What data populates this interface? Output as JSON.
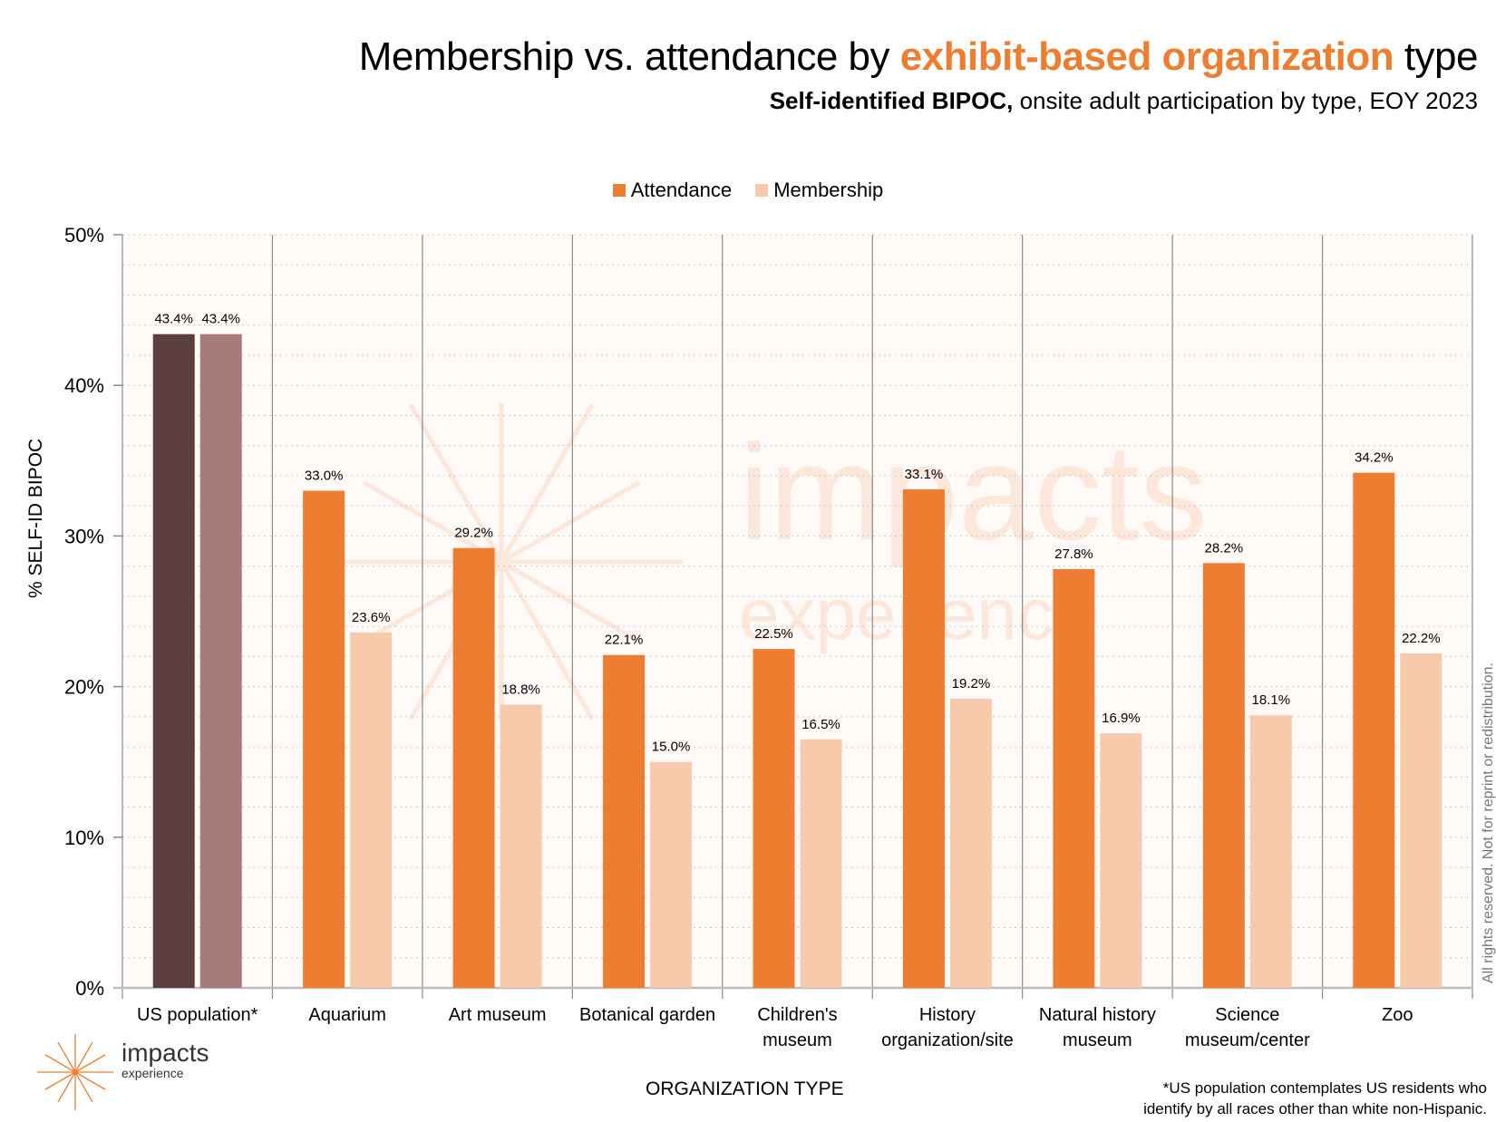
{
  "title": {
    "prefix": "Membership vs. attendance by ",
    "highlight": "exhibit-based organization",
    "suffix": " type"
  },
  "subtitle": {
    "bold": "Self-identified BIPOC,",
    "rest": " onsite adult participation by type, EOY 2023"
  },
  "colors": {
    "attendance": "#ed7d31",
    "membership": "#f7caac",
    "us_attendance": "#5c3d40",
    "us_membership": "#a87b7b",
    "highlight": "#ed7d31",
    "plot_bg": "#fffaf8",
    "watermark": "#fde6da"
  },
  "watermark": {
    "line1": "impacts",
    "line2": "experience"
  },
  "logo": {
    "name": "impacts",
    "sub": "experience"
  },
  "rights_note": "All rights reserved. Not for reprint or redistribution.",
  "footnote": {
    "line1": "*US population contemplates US residents who",
    "line2": "identify by all races other than white non-Hispanic."
  },
  "chart_data": {
    "type": "bar",
    "title": "Membership vs. attendance by exhibit-based organization type",
    "subtitle": "Self-identified BIPOC, onsite adult participation by type, EOY 2023",
    "xlabel": "ORGANIZATION TYPE",
    "ylabel": "% SELF-ID BIPOC",
    "ylim": [
      0,
      50
    ],
    "yticks": [
      "0%",
      "10%",
      "20%",
      "30%",
      "40%",
      "50%"
    ],
    "ytick_values": [
      0,
      10,
      20,
      30,
      40,
      50
    ],
    "minor_grid_step": 2,
    "grid": true,
    "legend_position": "top-center",
    "categories": [
      [
        "US population*"
      ],
      [
        "Aquarium"
      ],
      [
        "Art museum"
      ],
      [
        "Botanical garden"
      ],
      [
        "Children's",
        "museum"
      ],
      [
        "History",
        "organization/site"
      ],
      [
        "Natural history",
        "museum"
      ],
      [
        "Science",
        "museum/center"
      ],
      [
        "Zoo"
      ]
    ],
    "series": [
      {
        "name": "Attendance",
        "values": [
          43.4,
          33.0,
          29.2,
          22.1,
          22.5,
          33.1,
          27.8,
          28.2,
          34.2
        ],
        "labels": [
          "43.4%",
          "33.0%",
          "29.2%",
          "22.1%",
          "22.5%",
          "33.1%",
          "27.8%",
          "28.2%",
          "34.2%"
        ]
      },
      {
        "name": "Membership",
        "values": [
          43.4,
          23.6,
          18.8,
          15.0,
          16.5,
          19.2,
          16.9,
          18.1,
          22.2
        ],
        "labels": [
          "43.4%",
          "23.6%",
          "18.8%",
          "15.0%",
          "16.5%",
          "19.2%",
          "16.9%",
          "18.1%",
          "22.2%"
        ]
      }
    ]
  }
}
